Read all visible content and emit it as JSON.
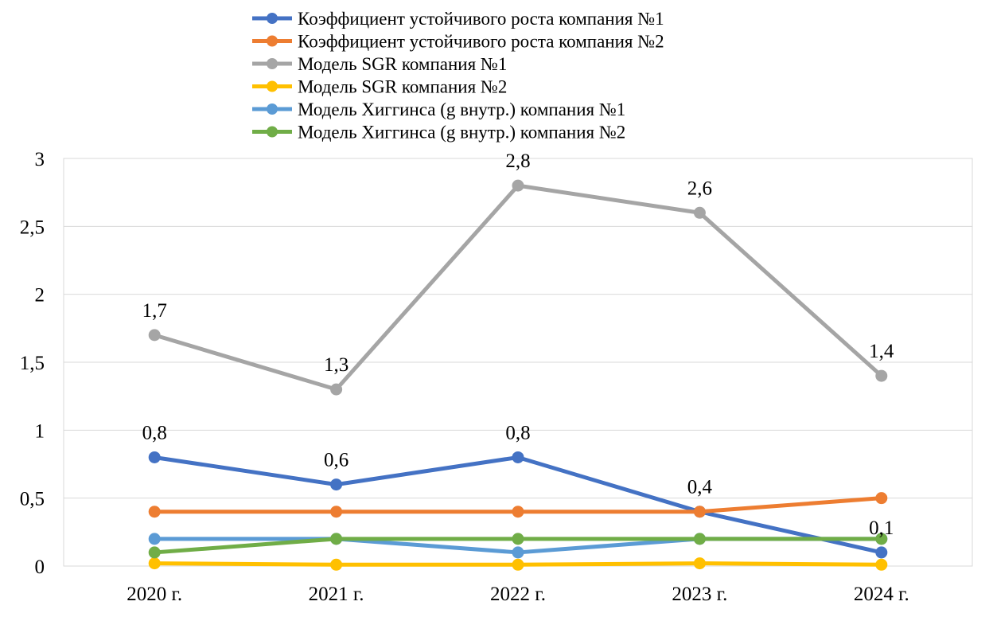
{
  "chart_data": {
    "type": "line",
    "categories": [
      "2020 г.",
      "2021 г.",
      "2022 г.",
      "2023 г.",
      "2024 г."
    ],
    "ylim": [
      0,
      3
    ],
    "yticks": [
      0,
      0.5,
      1,
      1.5,
      2,
      2.5,
      3
    ],
    "ytick_labels": [
      "0",
      "0,5",
      "1",
      "1,5",
      "2",
      "2,5",
      "3"
    ],
    "grid": true,
    "legend_position": "top",
    "series": [
      {
        "name": "Коэффициент устойчивого роста компания №1",
        "color": "#4472C4",
        "values": [
          0.8,
          0.6,
          0.8,
          0.4,
          0.1
        ],
        "labels": [
          "0,8",
          "0,6",
          "0,8",
          "0,4",
          "0,1"
        ]
      },
      {
        "name": "Коэффициент устойчивого роста компания №2",
        "color": "#ED7D31",
        "values": [
          0.4,
          0.4,
          0.4,
          0.4,
          0.5
        ],
        "labels": null
      },
      {
        "name": "Модель SGR компания №1",
        "color": "#A5A5A5",
        "values": [
          1.7,
          1.3,
          2.8,
          2.6,
          1.4
        ],
        "labels": [
          "1,7",
          "1,3",
          "2,8",
          "2,6",
          "1,4"
        ]
      },
      {
        "name": "Модель SGR компания №2",
        "color": "#FFC000",
        "values": [
          0.02,
          0.01,
          0.01,
          0.02,
          0.01
        ],
        "labels": null
      },
      {
        "name": "Модель Хиггинса (g внутр.) компания №1",
        "color": "#5B9BD5",
        "values": [
          0.2,
          0.2,
          0.1,
          0.2,
          0.2
        ],
        "labels": null
      },
      {
        "name": "Модель Хиггинса (g внутр.) компания №2",
        "color": "#70AD47",
        "values": [
          0.1,
          0.2,
          0.2,
          0.2,
          0.2
        ],
        "labels": null
      }
    ]
  }
}
